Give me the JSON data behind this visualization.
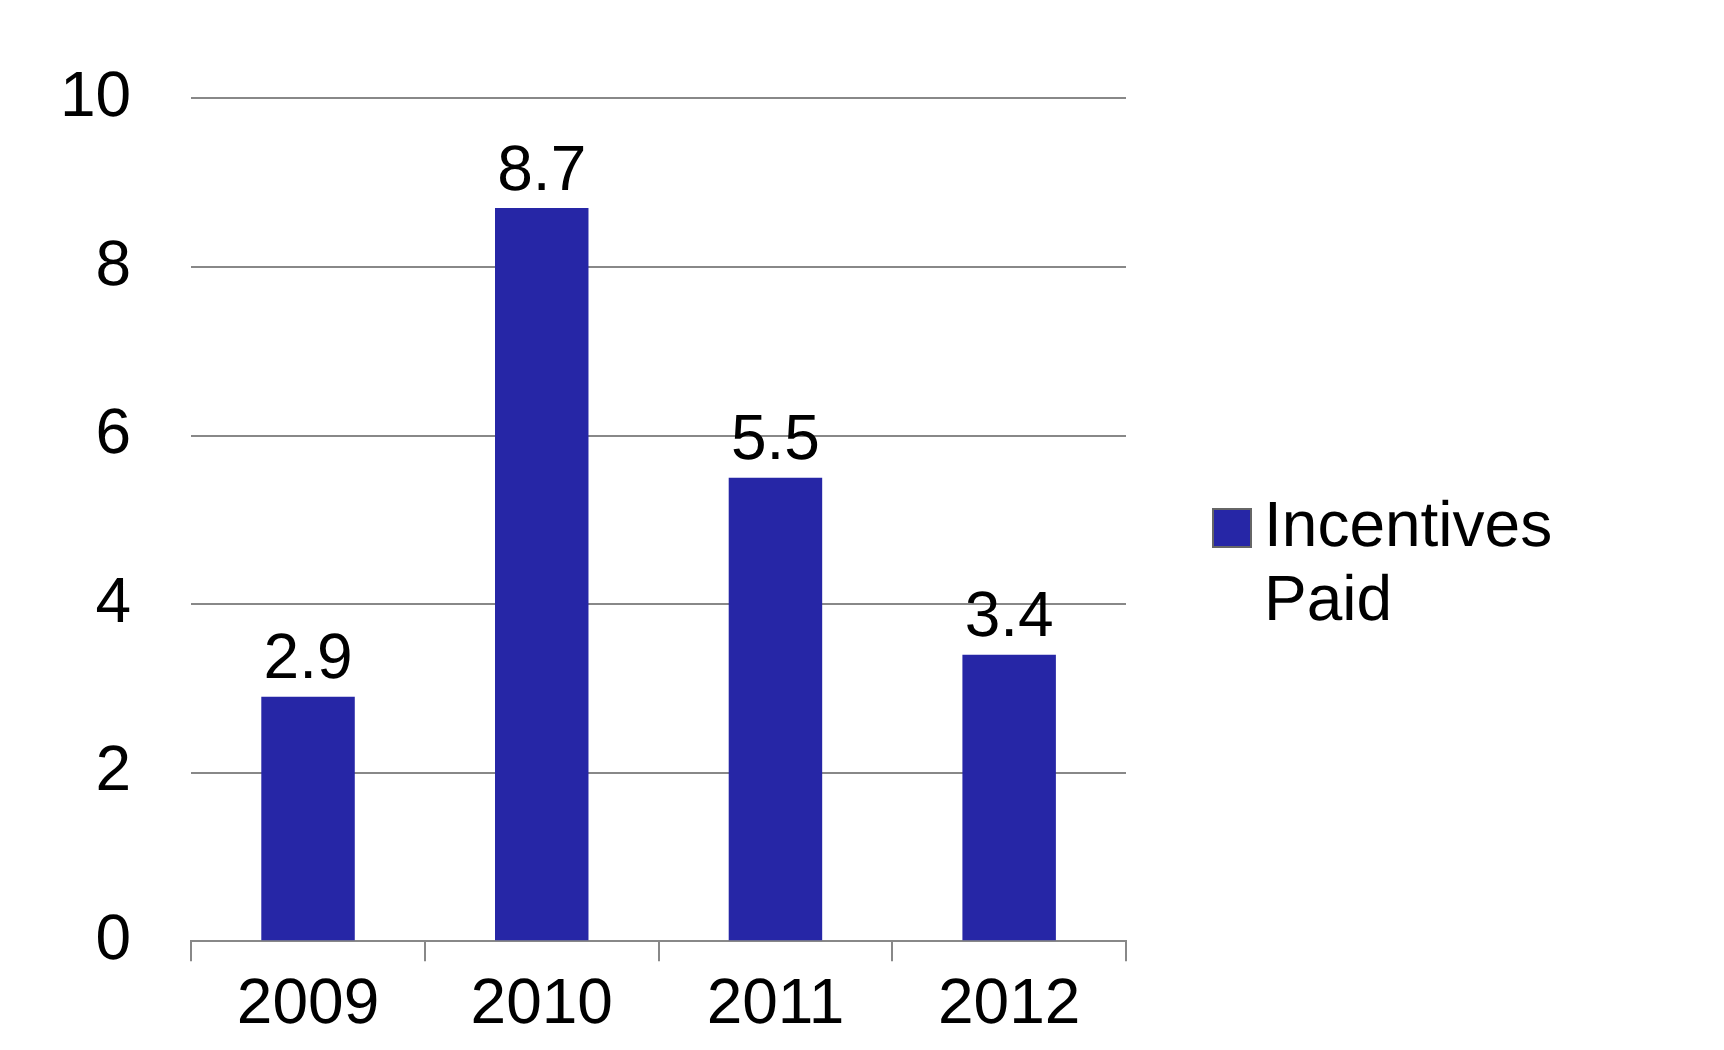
{
  "chart_data": {
    "type": "bar",
    "categories": [
      "2009",
      "2010",
      "2011",
      "2012"
    ],
    "series": [
      {
        "name": "Incentives Paid",
        "color": "#2626a6",
        "values": [
          2.9,
          8.7,
          5.5,
          3.4
        ]
      }
    ],
    "ylim": [
      0,
      10
    ],
    "yticks": [
      0,
      2,
      4,
      6,
      8,
      10
    ],
    "grid": "y",
    "legend": "right",
    "data_labels": true
  }
}
